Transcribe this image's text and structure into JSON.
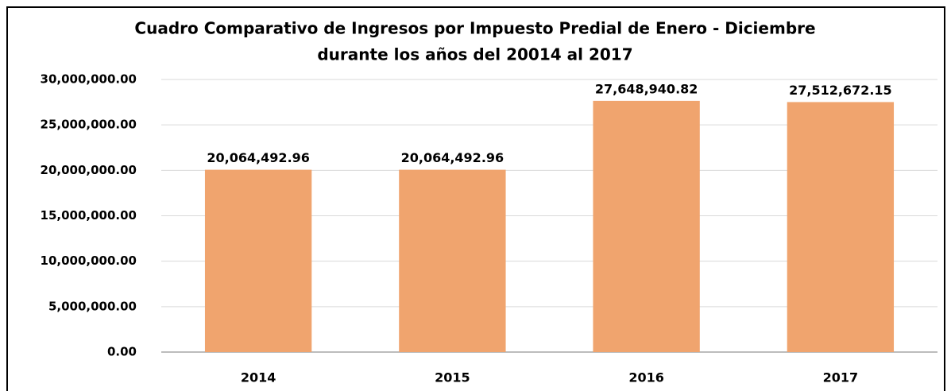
{
  "chart_data": {
    "type": "bar",
    "title": [
      "Cuadro Comparativo de Ingresos por Impuesto Predial  de Enero - Diciembre",
      "durante los años del 20014 al 2017"
    ],
    "categories": [
      "2014",
      "2015",
      "2016",
      "2017"
    ],
    "values": [
      20064492.96,
      20064492.96,
      27648940.82,
      27512672.15
    ],
    "value_labels": [
      "20,064,492.96",
      "20,064,492.96",
      "27,648,940.82",
      "27,512,672.15"
    ],
    "color": "#f0a46e",
    "ylim": [
      0,
      30000000
    ],
    "yticks": [
      {
        "value": 0,
        "label": "0.00"
      },
      {
        "value": 5000000,
        "label": "5,000,000.00"
      },
      {
        "value": 10000000,
        "label": "10,000,000.00"
      },
      {
        "value": 15000000,
        "label": "15,000,000.00"
      },
      {
        "value": 20000000,
        "label": "20,000,000.00"
      },
      {
        "value": 25000000,
        "label": "25,000,000.00"
      },
      {
        "value": 30000000,
        "label": "30,000,000.00"
      }
    ],
    "grid": true
  }
}
